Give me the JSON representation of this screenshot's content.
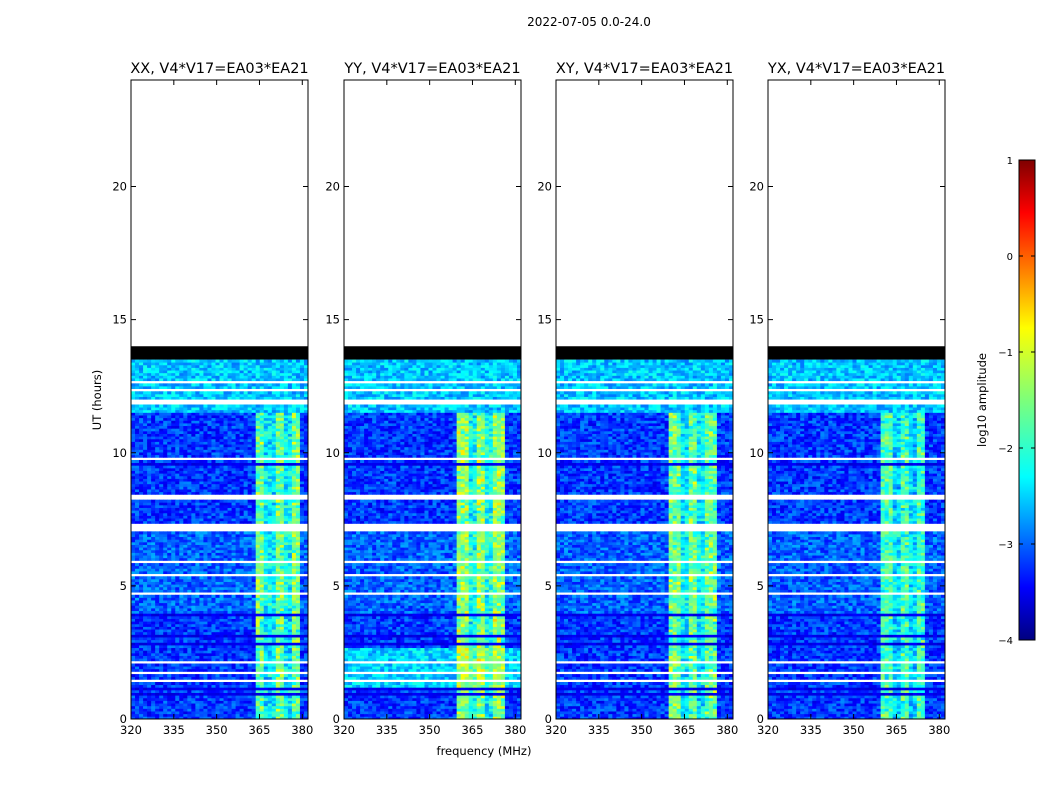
{
  "chart_data": {
    "type": "heatmap",
    "suptitle": "2022-07-05 0.0-24.0",
    "xlabel": "frequency (MHz)",
    "ylabel": "UT (hours)",
    "xlim": [
      320,
      382
    ],
    "ylim": [
      0,
      24
    ],
    "xticks": [
      "320",
      "335",
      "350",
      "365",
      "380"
    ],
    "yticks": [
      "0",
      "5",
      "10",
      "15",
      "20"
    ],
    "panels": [
      {
        "title": "XX, V4*V17=EA03*EA21",
        "band": [
          364,
          379
        ],
        "band_strength": 0.55
      },
      {
        "title": "YY, V4*V17=EA03*EA21",
        "band": [
          360,
          376
        ],
        "band_strength": 0.6
      },
      {
        "title": "XY, V4*V17=EA03*EA21",
        "band": [
          360,
          377
        ],
        "band_strength": 0.55
      },
      {
        "title": "YX, V4*V17=EA03*EA21",
        "band": [
          360,
          375
        ],
        "band_strength": 0.5
      }
    ],
    "data_end_hours": 13.5,
    "flagged_black_hours": [
      13.5,
      14.0
    ],
    "colorbar": {
      "label": "log10 amplitude",
      "range": [
        -4,
        1
      ],
      "ticks": [
        "1",
        "0",
        "−1",
        "−2",
        "−3",
        "−4"
      ],
      "colormap": "jet"
    }
  }
}
